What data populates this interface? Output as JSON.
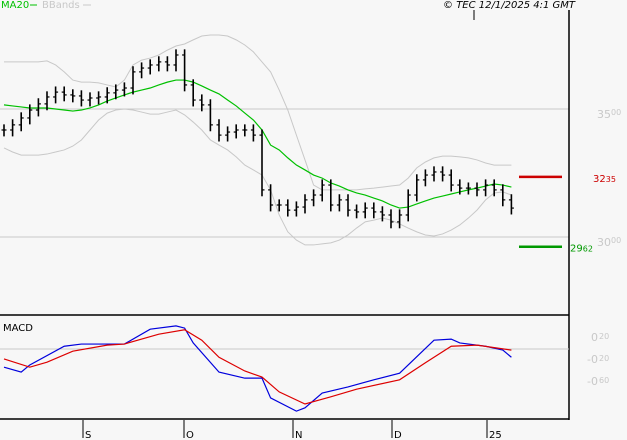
{
  "header": {
    "legend": [
      {
        "label": "MA20",
        "color": "#00c000"
      },
      {
        "label": "BBands",
        "color": "#c8c8c8"
      }
    ],
    "copyright": "© TEC 12/1/2025 4:1 GMT"
  },
  "chart_data": [
    {
      "type": "ohlc-bar",
      "panel": "price",
      "ylim": [
        27.6,
        39.3
      ],
      "yticks": [
        {
          "value": 35.0,
          "label": "35.00"
        },
        {
          "value": 30.0,
          "label": "30.00"
        }
      ],
      "grid": true,
      "close": [
        34.18,
        34.38,
        34.65,
        34.96,
        35.2,
        35.47,
        35.66,
        35.55,
        35.51,
        35.35,
        35.43,
        35.47,
        35.63,
        35.74,
        35.82,
        36.45,
        36.6,
        36.72,
        36.84,
        36.72,
        37.11,
        35.94,
        35.35,
        35.16,
        34.38,
        33.98,
        34.1,
        34.18,
        34.18,
        33.98,
        31.84,
        31.25,
        31.25,
        31.05,
        31.17,
        31.45,
        31.64,
        32.03,
        31.25,
        31.45,
        31.05,
        30.98,
        31.13,
        30.98,
        30.86,
        30.59,
        30.86,
        31.64,
        32.23,
        32.42,
        32.54,
        32.42,
        32.03,
        31.91,
        31.91,
        31.84,
        32.03,
        31.84,
        31.45,
        31.13
      ],
      "series": [
        {
          "name": "MA20",
          "color": "#00c000",
          "values": [
            35.16,
            35.12,
            35.08,
            35.04,
            35.04,
            35.04,
            35.0,
            34.96,
            34.92,
            34.96,
            35.04,
            35.16,
            35.31,
            35.43,
            35.55,
            35.66,
            35.74,
            35.82,
            35.94,
            36.05,
            36.13,
            36.13,
            36.05,
            35.9,
            35.74,
            35.59,
            35.35,
            35.12,
            34.84,
            34.57,
            34.18,
            33.59,
            33.4,
            33.09,
            32.81,
            32.62,
            32.42,
            32.3,
            32.11,
            31.99,
            31.84,
            31.72,
            31.64,
            31.52,
            31.41,
            31.25,
            31.13,
            31.17,
            31.29,
            31.41,
            31.52,
            31.6,
            31.68,
            31.76,
            31.84,
            31.91,
            31.99,
            32.07,
            32.03,
            31.95
          ]
        },
        {
          "name": "BBands",
          "color": "#c8c8c8",
          "upper": [
            36.84,
            36.84,
            36.84,
            36.84,
            36.84,
            36.88,
            36.72,
            36.45,
            36.13,
            36.05,
            36.05,
            36.02,
            35.94,
            35.86,
            36.13,
            36.72,
            36.91,
            36.99,
            37.11,
            37.3,
            37.46,
            37.54,
            37.7,
            37.85,
            37.89,
            37.89,
            37.85,
            37.7,
            37.5,
            37.23,
            36.84,
            36.45,
            35.74,
            34.96,
            33.98,
            33.01,
            32.03,
            31.84,
            31.84,
            31.84,
            31.84,
            31.84,
            31.88,
            31.91,
            31.95,
            31.99,
            32.03,
            32.3,
            32.7,
            32.93,
            33.09,
            33.16,
            33.16,
            33.13,
            33.09,
            33.01,
            32.89,
            32.81,
            32.81,
            32.81
          ],
          "lower": [
            33.48,
            33.32,
            33.2,
            33.2,
            33.2,
            33.24,
            33.32,
            33.4,
            33.55,
            33.79,
            34.18,
            34.57,
            34.84,
            34.96,
            35.0,
            34.96,
            34.88,
            34.8,
            34.8,
            34.88,
            34.96,
            34.77,
            34.49,
            34.18,
            33.79,
            33.59,
            33.4,
            33.13,
            32.81,
            32.62,
            32.42,
            31.84,
            30.86,
            30.2,
            29.88,
            29.69,
            29.69,
            29.73,
            29.77,
            29.88,
            30.08,
            30.35,
            30.59,
            30.66,
            30.74,
            30.66,
            30.51,
            30.35,
            30.2,
            30.08,
            30.04,
            30.12,
            30.27,
            30.47,
            30.74,
            31.05,
            31.45,
            31.72,
            31.76,
            31.64
          ]
        }
      ],
      "levels": [
        {
          "value": 32.35,
          "label": "32.35",
          "color": "#cc0000"
        },
        {
          "value": 29.62,
          "label": "29.62",
          "color": "#009900"
        }
      ]
    },
    {
      "type": "line",
      "panel": "MACD",
      "title": "MACD",
      "ylim": [
        -1.3,
        0.62
      ],
      "yticks": [
        {
          "value": 0.2,
          "label": "0.20"
        },
        {
          "value": -0.2,
          "label": "-0.20"
        },
        {
          "value": -0.6,
          "label": "-0.60"
        }
      ],
      "series": [
        {
          "color": "#0000dd",
          "points": [
            [
              0,
              -0.33
            ],
            [
              2,
              -0.42
            ],
            [
              3,
              -0.29
            ],
            [
              7,
              0.05
            ],
            [
              9,
              0.09
            ],
            [
              14,
              0.09
            ],
            [
              17,
              0.36
            ],
            [
              20,
              0.42
            ],
            [
              21,
              0.38
            ],
            [
              22,
              0.11
            ],
            [
              25,
              -0.42
            ],
            [
              28,
              -0.53
            ],
            [
              30,
              -0.53
            ],
            [
              31,
              -0.89
            ],
            [
              34,
              -1.13
            ],
            [
              35,
              -1.07
            ],
            [
              37,
              -0.8
            ],
            [
              40,
              -0.69
            ],
            [
              43,
              -0.56
            ],
            [
              46,
              -0.44
            ],
            [
              50,
              0.16
            ],
            [
              52,
              0.18
            ],
            [
              53,
              0.11
            ],
            [
              56,
              0.05
            ],
            [
              58,
              -0.02
            ],
            [
              59,
              -0.15
            ]
          ]
        },
        {
          "color": "#dd0000",
          "points": [
            [
              0,
              -0.18
            ],
            [
              3,
              -0.33
            ],
            [
              5,
              -0.24
            ],
            [
              8,
              -0.04
            ],
            [
              12,
              0.07
            ],
            [
              14,
              0.09
            ],
            [
              18,
              0.27
            ],
            [
              21,
              0.35
            ],
            [
              23,
              0.16
            ],
            [
              25,
              -0.15
            ],
            [
              28,
              -0.4
            ],
            [
              30,
              -0.51
            ],
            [
              32,
              -0.78
            ],
            [
              35,
              -1.0
            ],
            [
              38,
              -0.87
            ],
            [
              41,
              -0.73
            ],
            [
              46,
              -0.56
            ],
            [
              49,
              -0.25
            ],
            [
              52,
              0.05
            ],
            [
              55,
              0.07
            ],
            [
              59,
              -0.02
            ]
          ]
        }
      ]
    }
  ],
  "xaxis": {
    "labels": [
      "S",
      "O",
      "N",
      "D",
      "25"
    ]
  }
}
